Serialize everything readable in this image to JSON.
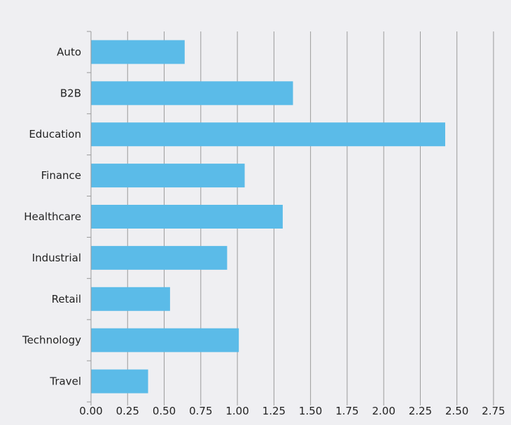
{
  "chart_data": {
    "type": "bar",
    "orientation": "horizontal",
    "title": "",
    "xlabel": "",
    "ylabel": "",
    "categories": [
      "Auto",
      "B2B",
      "Education",
      "Finance",
      "Healthcare",
      "Industrial",
      "Retail",
      "Technology",
      "Travel"
    ],
    "values": [
      0.64,
      1.38,
      2.42,
      1.05,
      1.31,
      0.93,
      0.54,
      1.01,
      0.39
    ],
    "xlim": [
      0,
      2.75
    ],
    "xticks": [
      "0.00",
      "0.25",
      "0.50",
      "0.75",
      "1.00",
      "1.25",
      "1.50",
      "1.75",
      "2.00",
      "2.25",
      "2.50",
      "2.75"
    ],
    "grid": "vertical",
    "legend": "none",
    "colors": {
      "bar": "#5bbbe8",
      "background": "#efeff2",
      "grid": "#9a9a9a",
      "text": "#222222"
    }
  }
}
